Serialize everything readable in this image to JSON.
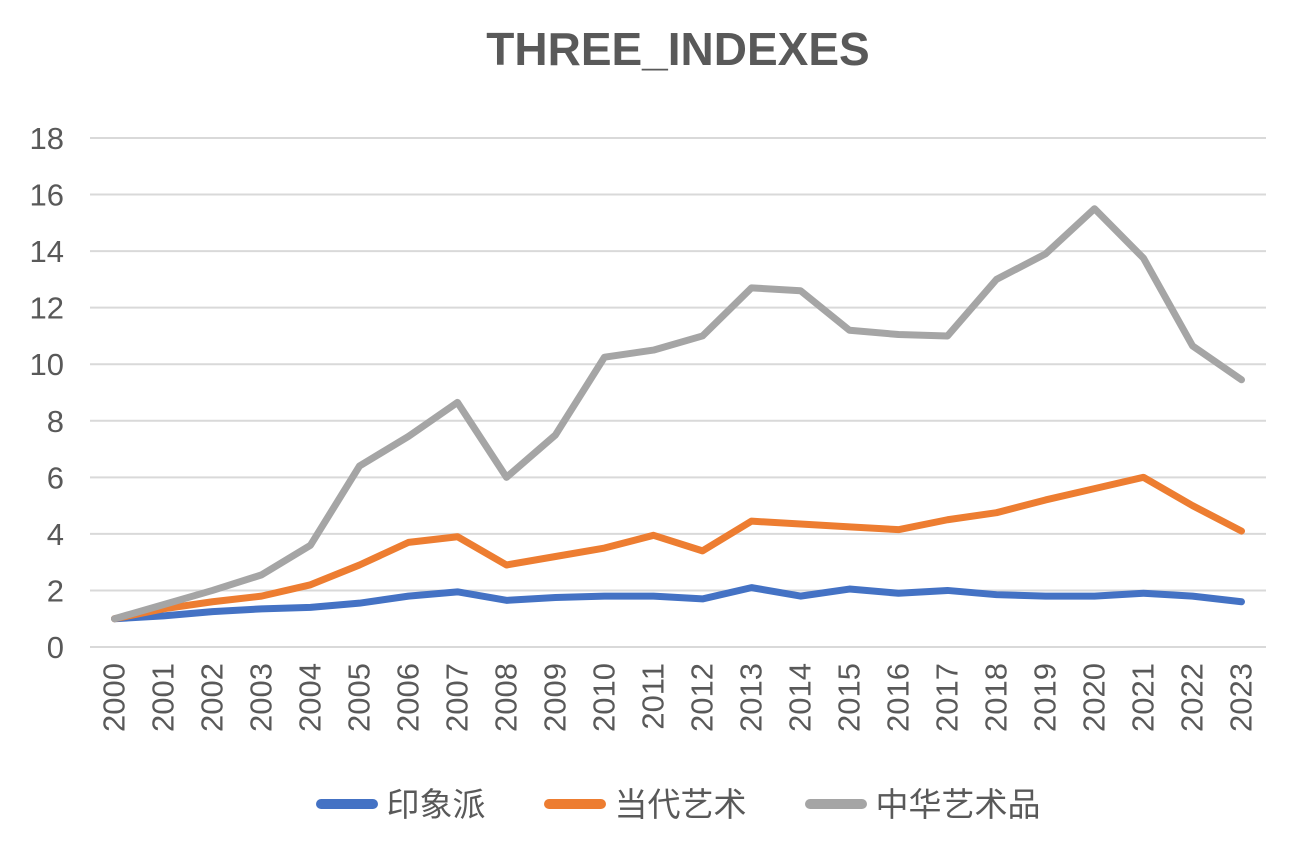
{
  "chart_data": {
    "type": "line",
    "title": "THREE_INDEXES",
    "x": [
      "2000",
      "2001",
      "2002",
      "2003",
      "2004",
      "2005",
      "2006",
      "2007",
      "2008",
      "2009",
      "2010",
      "2011",
      "2012",
      "2013",
      "2014",
      "2015",
      "2016",
      "2017",
      "2018",
      "2019",
      "2020",
      "2021",
      "2022",
      "2023"
    ],
    "yticks": [
      0,
      2,
      4,
      6,
      8,
      10,
      12,
      14,
      16,
      18
    ],
    "ylim": [
      0,
      18
    ],
    "grid": true,
    "legend_position": "bottom",
    "series": [
      {
        "name": "印象派",
        "color": "#4472C4",
        "values": [
          1.0,
          1.1,
          1.25,
          1.35,
          1.4,
          1.55,
          1.8,
          1.95,
          1.65,
          1.75,
          1.8,
          1.8,
          1.7,
          2.1,
          1.8,
          2.05,
          1.9,
          2.0,
          1.85,
          1.8,
          1.8,
          1.9,
          1.8,
          1.6
        ]
      },
      {
        "name": "当代艺术",
        "color": "#ED7D31",
        "values": [
          1.0,
          1.35,
          1.6,
          1.8,
          2.2,
          2.9,
          3.7,
          3.9,
          2.9,
          3.2,
          3.5,
          3.95,
          3.4,
          4.45,
          4.35,
          4.25,
          4.15,
          4.5,
          4.75,
          5.2,
          5.6,
          6.0,
          5.0,
          4.1
        ]
      },
      {
        "name": "中华艺术品",
        "color": "#A5A5A5",
        "values": [
          1.0,
          1.5,
          2.0,
          2.55,
          3.6,
          6.4,
          7.45,
          8.65,
          6.0,
          7.5,
          10.25,
          10.5,
          11.0,
          12.7,
          12.6,
          11.2,
          11.05,
          11.0,
          13.0,
          13.9,
          15.5,
          13.75,
          10.65,
          9.45
        ]
      }
    ]
  },
  "colors": {
    "gridline": "#D9D9D9",
    "axis_text": "#595959",
    "title_text": "#595959",
    "background": "#FFFFFF"
  }
}
